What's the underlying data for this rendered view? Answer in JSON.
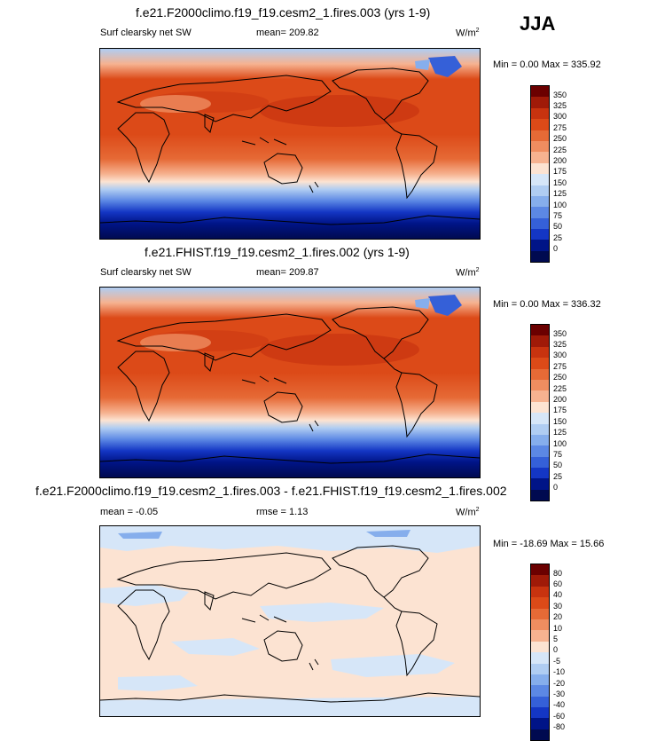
{
  "season": "JJA",
  "panels": [
    {
      "title": "f.e21.F2000climo.f19_f19.cesm2_1.fires.003 (yrs 1-9)",
      "variable": "Surf clearsky net SW",
      "mean": "mean= 209.82",
      "units": "W/m",
      "units_sup": "2",
      "minmax": "Min =   0.00 Max = 335.92",
      "scale": [
        "350",
        "325",
        "300",
        "275",
        "250",
        "225",
        "200",
        "175",
        "150",
        "125",
        "100",
        "75",
        "50",
        "25",
        "0"
      ]
    },
    {
      "title": "f.e21.FHIST.f19_f19.cesm2_1.fires.002 (yrs 1-9)",
      "variable": "Surf clearsky net SW",
      "mean": "mean= 209.87",
      "units": "W/m",
      "units_sup": "2",
      "minmax": "Min =   0.00 Max = 336.32",
      "scale": [
        "350",
        "325",
        "300",
        "275",
        "250",
        "225",
        "200",
        "175",
        "150",
        "125",
        "100",
        "75",
        "50",
        "25",
        "0"
      ]
    },
    {
      "title": "f.e21.F2000climo.f19_f19.cesm2_1.fires.003 - f.e21.FHIST.f19_f19.cesm2_1.fires.002",
      "mean": "mean =  -0.05",
      "rmse": "rmse =   1.13",
      "units": "W/m",
      "units_sup": "2",
      "minmax": "Min = -18.69 Max =  15.66",
      "scale": [
        "80",
        "60",
        "40",
        "30",
        "20",
        "10",
        "5",
        "0",
        "-5",
        "-10",
        "-20",
        "-30",
        "-40",
        "-60",
        "-80"
      ]
    }
  ],
  "colors": {
    "abs_scale": [
      "#6b0000",
      "#a01a08",
      "#c8330f",
      "#dc4a18",
      "#e66a36",
      "#ef8d60",
      "#f6b290",
      "#fce3d2",
      "#d6e6f8",
      "#b0cdf2",
      "#86aeec",
      "#5c88e4",
      "#3560d8",
      "#1436c4",
      "#001487",
      "#000a50"
    ],
    "diff_scale": [
      "#6b0000",
      "#a01a08",
      "#c8330f",
      "#dc4a18",
      "#e66a36",
      "#ef8d60",
      "#f6b290",
      "#fce3d2",
      "#d6e6f8",
      "#b0cdf2",
      "#86aeec",
      "#5c88e4",
      "#3560d8",
      "#1436c4",
      "#001487",
      "#000a50"
    ]
  }
}
